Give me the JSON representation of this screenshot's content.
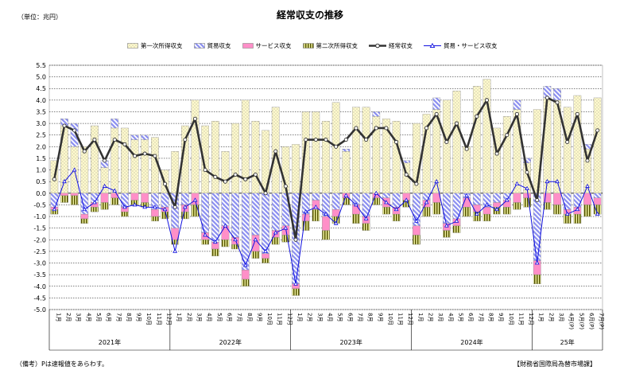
{
  "header": {
    "title": "経常収支の推移",
    "unit": "（単位：兆円）"
  },
  "footer": {
    "note": "（備考）Pは速報値をあらわす。",
    "source": "【財務省国際局為替市場課】"
  },
  "colors": {
    "primary_income": "#fffacd",
    "trade": "#8a8ef0",
    "services": "#ff8fc8",
    "secondary_income": "#c8c864",
    "current_account": "#333333",
    "trade_services": "#1010e0"
  },
  "chart_data": {
    "type": "bar",
    "title": "経常収支の推移",
    "ylabel": "（単位：兆円）",
    "ylim": [
      -5.0,
      5.5
    ],
    "ytick_step": 0.5,
    "grid": true,
    "legend_position": "top",
    "categories": [
      "1月",
      "2月",
      "3月",
      "4月",
      "5月",
      "6月",
      "7月",
      "8月",
      "9月",
      "10月",
      "11月",
      "12月",
      "1月",
      "2月",
      "3月",
      "4月",
      "5月",
      "6月",
      "7月",
      "8月",
      "9月",
      "10月",
      "11月",
      "12月",
      "1月",
      "2月",
      "3月",
      "4月",
      "5月",
      "6月",
      "7月",
      "8月",
      "9月",
      "10月",
      "11月",
      "12月",
      "1月",
      "2月",
      "3月",
      "4月",
      "5月",
      "6月",
      "7月",
      "8月",
      "9月",
      "10月",
      "11月",
      "12月",
      "1月",
      "2月",
      "3月",
      "4月(P)",
      "5月(P)",
      "6月(P)",
      "7月(P)"
    ],
    "year_labels": [
      {
        "label": "2021年",
        "start": 0,
        "end": 11
      },
      {
        "label": "2022年",
        "start": 12,
        "end": 23
      },
      {
        "label": "2023年",
        "start": 24,
        "end": 35
      },
      {
        "label": "2024年",
        "start": 36,
        "end": 47
      },
      {
        "label": "25年",
        "start": 48,
        "end": 54
      }
    ],
    "series": [
      {
        "name": "第一次所得収支",
        "kind": "bar",
        "values": [
          1.4,
          2.9,
          2.0,
          2.0,
          2.9,
          1.1,
          2.8,
          2.8,
          2.3,
          2.3,
          2.4,
          1.0,
          1.8,
          2.9,
          4.0,
          2.9,
          3.1,
          1.8,
          3.0,
          4.0,
          3.1,
          2.7,
          3.7,
          2.0,
          2.1,
          3.5,
          3.5,
          3.1,
          3.9,
          1.8,
          3.7,
          3.7,
          3.3,
          3.2,
          3.1,
          1.3,
          3.0,
          3.4,
          3.6,
          4.0,
          4.4,
          2.0,
          4.6,
          4.9,
          2.8,
          3.3,
          3.6,
          1.3,
          3.6,
          4.1,
          4.0,
          3.7,
          4.2,
          1.9,
          4.1
        ]
      },
      {
        "name": "貿易収支",
        "kind": "bar",
        "values": [
          -0.6,
          0.3,
          1.0,
          -0.9,
          -0.4,
          0.3,
          0.4,
          -0.6,
          0.2,
          0.2,
          -0.7,
          -0.6,
          -1.5,
          -0.5,
          0.0,
          -1.7,
          -2.1,
          -1.4,
          -1.9,
          -3.3,
          -1.8,
          -2.6,
          -1.6,
          -1.4,
          -3.9,
          -0.9,
          -0.3,
          -1.0,
          -0.7,
          0.1,
          -0.5,
          -1.0,
          0.2,
          -0.2,
          -0.6,
          0.1,
          -1.4,
          -0.3,
          0.5,
          -1.3,
          -1.1,
          -0.2,
          -0.5,
          -0.6,
          -0.4,
          -0.3,
          0.4,
          0.2,
          -2.9,
          0.5,
          0.5,
          -0.7,
          -0.6,
          0.2,
          -0.2
        ]
      },
      {
        "name": "サービス収支",
        "kind": "bar",
        "values": [
          -0.1,
          -0.1,
          -0.1,
          -0.2,
          -0.2,
          -0.4,
          -0.2,
          -0.2,
          -0.3,
          -0.4,
          -0.3,
          -0.2,
          -0.5,
          -0.3,
          -0.5,
          -0.3,
          -0.3,
          -0.6,
          -0.3,
          -0.4,
          -0.7,
          -0.2,
          -0.3,
          -0.4,
          -0.2,
          -0.3,
          -0.4,
          -0.6,
          -0.3,
          -0.2,
          -0.4,
          -0.3,
          -0.2,
          -0.4,
          -0.3,
          -0.3,
          -0.4,
          -0.3,
          -0.4,
          -0.3,
          -0.3,
          -0.4,
          -0.3,
          -0.3,
          -0.2,
          -0.3,
          -0.4,
          -0.2,
          -0.6,
          -0.4,
          -0.5,
          -0.2,
          -0.3,
          -0.5,
          -0.3
        ]
      },
      {
        "name": "第二次所得収支",
        "kind": "bar",
        "values": [
          -0.2,
          -0.3,
          -0.4,
          -0.2,
          -0.2,
          -0.3,
          -0.3,
          -0.2,
          -0.2,
          -0.2,
          -0.2,
          -0.3,
          -0.2,
          -0.3,
          -0.5,
          -0.2,
          -0.3,
          -0.3,
          -0.2,
          -0.3,
          -0.3,
          -0.2,
          -0.3,
          -0.3,
          -0.3,
          -0.4,
          -0.5,
          -0.4,
          -0.3,
          -0.3,
          -0.4,
          -0.3,
          -0.3,
          -0.3,
          -0.3,
          -0.3,
          -0.4,
          -0.4,
          -0.5,
          -0.3,
          -0.3,
          -0.4,
          -0.4,
          -0.3,
          -0.3,
          -0.3,
          -0.3,
          -0.4,
          -0.4,
          -0.3,
          -0.4,
          -0.4,
          -0.4,
          -0.5,
          -0.4
        ]
      },
      {
        "name": "経常収支",
        "kind": "line",
        "values": [
          0.6,
          2.9,
          2.7,
          1.8,
          2.3,
          1.4,
          2.3,
          2.1,
          1.6,
          1.7,
          1.6,
          0.4,
          -0.6,
          2.3,
          3.2,
          1.0,
          0.7,
          0.5,
          0.8,
          0.6,
          0.8,
          0.0,
          1.8,
          0.3,
          -2.0,
          2.3,
          2.3,
          2.3,
          2.0,
          2.3,
          2.8,
          2.3,
          2.8,
          2.8,
          2.2,
          0.8,
          0.4,
          2.8,
          3.4,
          2.2,
          3.0,
          1.9,
          3.3,
          4.0,
          1.7,
          2.5,
          3.4,
          0.9,
          -0.3,
          4.1,
          3.9,
          2.2,
          3.4,
          1.4,
          2.7
        ]
      },
      {
        "name": "貿易・サービス収支",
        "kind": "line",
        "values": [
          -0.7,
          0.5,
          1.0,
          -0.7,
          -0.4,
          0.3,
          0.1,
          -0.6,
          -0.5,
          -0.6,
          -0.6,
          -0.7,
          -2.5,
          -0.6,
          -0.3,
          -1.8,
          -2.1,
          -1.4,
          -2.0,
          -3.1,
          -2.0,
          -2.5,
          -1.7,
          -1.5,
          -3.9,
          -0.8,
          -0.6,
          -0.9,
          -1.3,
          -0.1,
          -0.5,
          -1.1,
          0.0,
          -0.4,
          -0.7,
          -0.3,
          -1.2,
          -0.4,
          0.5,
          -1.4,
          -1.2,
          -0.1,
          -0.9,
          -0.5,
          -0.7,
          -0.3,
          0.4,
          0.2,
          -3.0,
          0.5,
          0.5,
          -0.9,
          -0.7,
          0.3,
          -0.9
        ]
      }
    ]
  }
}
